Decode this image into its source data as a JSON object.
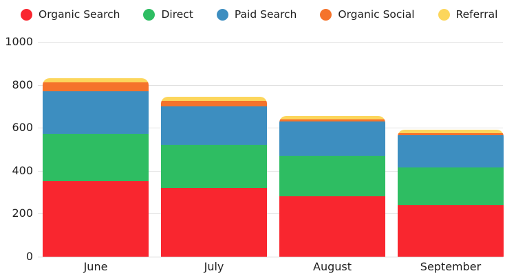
{
  "chart_data": {
    "type": "bar",
    "stacked": true,
    "title": "",
    "xlabel": "",
    "ylabel": "",
    "categories": [
      "June",
      "July",
      "August",
      "September"
    ],
    "series": [
      {
        "name": "Organic Search",
        "color": "#f9262f",
        "values": [
          350,
          320,
          280,
          240
        ]
      },
      {
        "name": "Direct",
        "color": "#2ebd62",
        "values": [
          220,
          200,
          190,
          175
        ]
      },
      {
        "name": "Paid Search",
        "color": "#3d8ec0",
        "values": [
          200,
          180,
          160,
          150
        ]
      },
      {
        "name": "Organic Social",
        "color": "#f5732b",
        "values": [
          40,
          25,
          10,
          10
        ]
      },
      {
        "name": "Referral",
        "color": "#fcd65c",
        "values": [
          20,
          20,
          15,
          15
        ]
      }
    ],
    "ylim": [
      0,
      1000
    ],
    "yticks": [
      0,
      200,
      400,
      600,
      800,
      1000
    ],
    "legend_position": "top",
    "grid": "horizontal",
    "grid_color": "#e0e0e0",
    "axis_text_color": "#1d1d1d",
    "bar_corner_radius": 10
  }
}
